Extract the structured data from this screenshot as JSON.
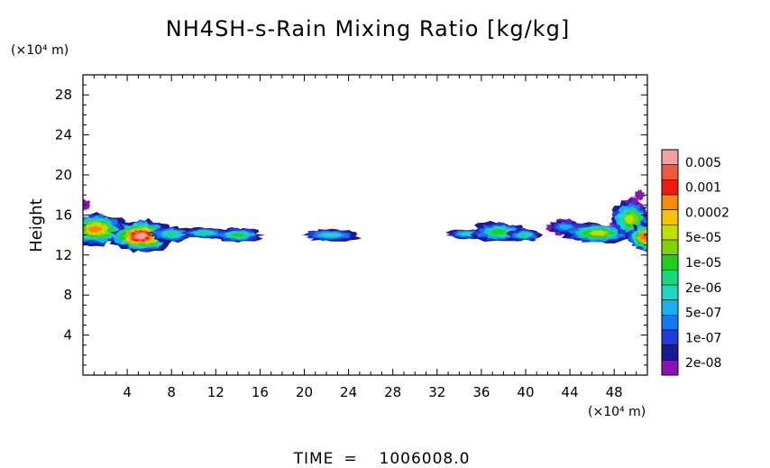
{
  "chart_data": {
    "type": "heatmap",
    "title": "NH4SH-s-Rain Mixing Ratio [kg/kg]",
    "xlabel": "",
    "ylabel": "Height",
    "x_unit": "(×10⁴ m)",
    "y_unit": "(×10⁴ m)",
    "xlim": [
      0,
      51
    ],
    "ylim": [
      0,
      30
    ],
    "x_ticks": [
      "4",
      "8",
      "12",
      "16",
      "20",
      "24",
      "28",
      "32",
      "36",
      "40",
      "44",
      "48"
    ],
    "y_ticks": [
      "4",
      "8",
      "12",
      "16",
      "20",
      "24",
      "28"
    ],
    "colorbar": {
      "labels": [
        "0.005",
        "0.001",
        "0.0002",
        "5e-05",
        "1e-05",
        "2e-06",
        "5e-07",
        "1e-07",
        "2e-08"
      ],
      "colors": [
        "#f7a0a0",
        "#f05a3a",
        "#ee1c10",
        "#f98a08",
        "#f4c400",
        "#c2dd00",
        "#7ed400",
        "#1ecf1e",
        "#18d87c",
        "#19d8c4",
        "#18b0ef",
        "#1677f2",
        "#1f3bde",
        "#1a1896",
        "#8b12b4"
      ]
    },
    "regions": [
      {
        "x": [
          0,
          15.8
        ],
        "y": [
          12.5,
          16.8
        ],
        "peak_level": 0.005,
        "peak_at": [
          5.4,
          13.5
        ]
      },
      {
        "x": [
          19.8,
          24.8
        ],
        "y": [
          13.5,
          14.6
        ],
        "peak_level": 2e-06
      },
      {
        "x": [
          32.8,
          41.2
        ],
        "y": [
          12.8,
          15.6
        ],
        "peak_level": 1e-05
      },
      {
        "x": [
          41.8,
          51
        ],
        "y": [
          12.5,
          18.8
        ],
        "peak_level": 0.0002,
        "peak_at": [
          50.7,
          13.8
        ]
      }
    ],
    "grid": false,
    "legend": "right"
  },
  "footer": {
    "time_label": "TIME",
    "equals": "=",
    "time_value": "1006008.0"
  }
}
